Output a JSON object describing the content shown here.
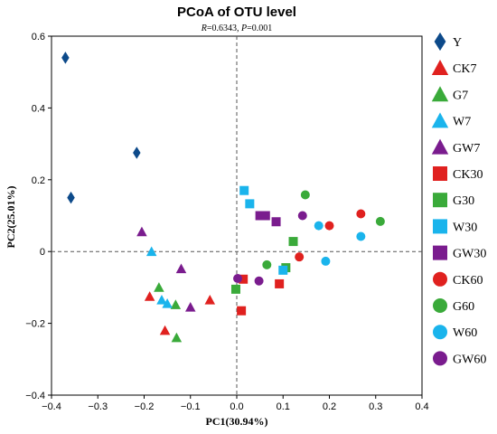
{
  "chart_data": {
    "type": "scatter",
    "title": "PCoA of OTU level",
    "subtitle": {
      "r_label": "R",
      "r_value": "=0.6343, ",
      "p_label": "P",
      "p_value": "=0.001"
    },
    "xlabel": "PC1(30.94%)",
    "ylabel": "PC2(25.01%)",
    "xlim": [
      -0.4,
      0.4
    ],
    "ylim": [
      -0.4,
      0.6
    ],
    "xticks": [
      "−0.4",
      "−0.3",
      "−0.2",
      "−0.1",
      "0.0",
      "0.1",
      "0.2",
      "0.3",
      "0.4"
    ],
    "xtick_values": [
      -0.4,
      -0.3,
      -0.2,
      -0.1,
      0.0,
      0.1,
      0.2,
      0.3,
      0.4
    ],
    "yticks": [
      "−0.4",
      "−0.2",
      "0",
      "0.2",
      "0.4",
      "0.6"
    ],
    "ytick_values": [
      -0.4,
      -0.2,
      0,
      0.2,
      0.4,
      0.6
    ],
    "reference_lines": {
      "x": 0,
      "y": 0,
      "style": "dashed"
    },
    "legend_position": "right",
    "series": [
      {
        "name": "Y",
        "marker": "diamond",
        "color": "#0d4a8a",
        "points": [
          [
            -0.37,
            0.54
          ],
          [
            -0.358,
            0.15
          ],
          [
            -0.216,
            0.275
          ]
        ]
      },
      {
        "name": "CK7",
        "marker": "triangle",
        "color": "#e0211f",
        "points": [
          [
            -0.188,
            -0.125
          ],
          [
            -0.155,
            -0.22
          ],
          [
            -0.058,
            -0.135
          ]
        ]
      },
      {
        "name": "G7",
        "marker": "triangle",
        "color": "#3aaa3a",
        "points": [
          [
            -0.168,
            -0.1
          ],
          [
            -0.132,
            -0.148
          ],
          [
            -0.13,
            -0.24
          ]
        ]
      },
      {
        "name": "W7",
        "marker": "triangle",
        "color": "#1ab4ec",
        "points": [
          [
            -0.184,
            0.0
          ],
          [
            -0.162,
            -0.135
          ],
          [
            -0.15,
            -0.145
          ]
        ]
      },
      {
        "name": "GW7",
        "marker": "triangle",
        "color": "#7a1c8e",
        "points": [
          [
            -0.205,
            0.055
          ],
          [
            -0.12,
            -0.048
          ],
          [
            -0.1,
            -0.155
          ]
        ]
      },
      {
        "name": "CK30",
        "marker": "square",
        "color": "#e0211f",
        "points": [
          [
            0.01,
            -0.165
          ],
          [
            0.014,
            -0.077
          ],
          [
            0.092,
            -0.09
          ]
        ]
      },
      {
        "name": "G30",
        "marker": "square",
        "color": "#3aaa3a",
        "points": [
          [
            -0.002,
            -0.105
          ],
          [
            0.106,
            -0.045
          ],
          [
            0.122,
            0.028
          ]
        ]
      },
      {
        "name": "W30",
        "marker": "square",
        "color": "#1ab4ec",
        "points": [
          [
            0.016,
            0.17
          ],
          [
            0.028,
            0.133
          ],
          [
            0.1,
            -0.052
          ]
        ]
      },
      {
        "name": "GW30",
        "marker": "square",
        "color": "#7a1c8e",
        "points": [
          [
            0.05,
            0.1
          ],
          [
            0.062,
            0.1
          ],
          [
            0.085,
            0.083
          ]
        ]
      },
      {
        "name": "CK60",
        "marker": "circle",
        "color": "#e0211f",
        "points": [
          [
            0.135,
            -0.015
          ],
          [
            0.2,
            0.072
          ],
          [
            0.268,
            0.105
          ]
        ]
      },
      {
        "name": "G60",
        "marker": "circle",
        "color": "#3aaa3a",
        "points": [
          [
            0.065,
            -0.037
          ],
          [
            0.148,
            0.158
          ],
          [
            0.31,
            0.084
          ]
        ]
      },
      {
        "name": "W60",
        "marker": "circle",
        "color": "#1ab4ec",
        "points": [
          [
            0.177,
            0.072
          ],
          [
            0.192,
            -0.027
          ],
          [
            0.268,
            0.042
          ]
        ]
      },
      {
        "name": "GW60",
        "marker": "circle",
        "color": "#7a1c8e",
        "points": [
          [
            0.002,
            -0.075
          ],
          [
            0.048,
            -0.082
          ],
          [
            0.142,
            0.1
          ]
        ]
      }
    ]
  }
}
